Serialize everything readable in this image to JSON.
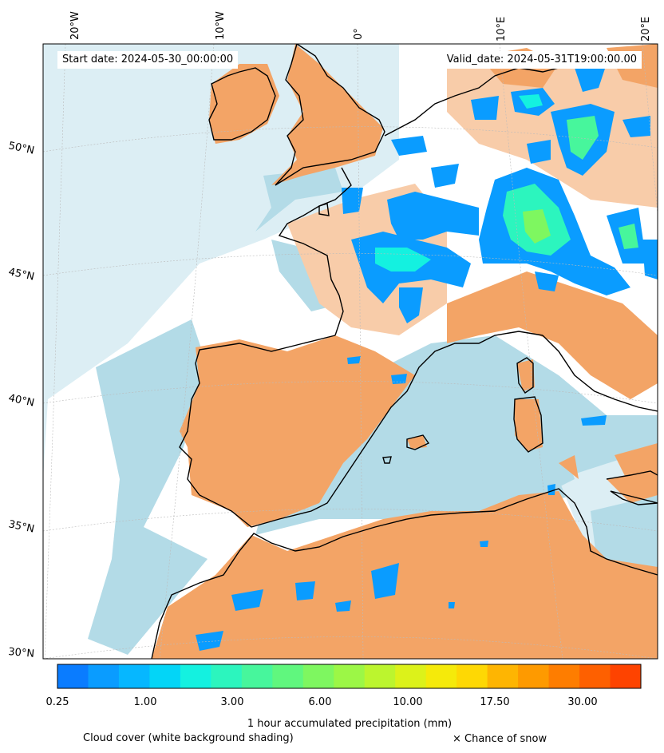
{
  "header": {
    "start_date": "Start date: 2024-05-30_00:00:00",
    "valid_date": "Valid_date: 2024-05-31T19:00:00.00"
  },
  "graticule": {
    "longitudes": [
      "20°W",
      "10°W",
      "0°",
      "10°E",
      "20°E"
    ],
    "latitudes": [
      "50°N",
      "45°N",
      "40°N",
      "35°N",
      "30°N"
    ]
  },
  "colorbar": {
    "title": "1 hour accumulated precipitation (mm)",
    "tick_labels": [
      "0.25",
      "1.00",
      "3.00",
      "6.00",
      "10.00",
      "17.50",
      "30.00"
    ],
    "colors": [
      "#0a7cff",
      "#0a9cff",
      "#06b7ff",
      "#03d5f7",
      "#14f1e0",
      "#2cf5be",
      "#47f69c",
      "#60f77e",
      "#7ef760",
      "#9cf746",
      "#bcf52e",
      "#dcf21a",
      "#f5ea0a",
      "#fed804",
      "#feb502",
      "#fe9a00",
      "#fe7d00",
      "#fe6000",
      "#fe4300"
    ]
  },
  "legend": {
    "cloud_note": "Cloud cover (white background shading)",
    "snow_note": "× Chance of snow"
  },
  "colors": {
    "land": "#f3a466",
    "land_light": "#f8cca9",
    "cloud_sea": "#b3dbe7",
    "cloud_light": "#dceef4",
    "coast": "#000000"
  }
}
